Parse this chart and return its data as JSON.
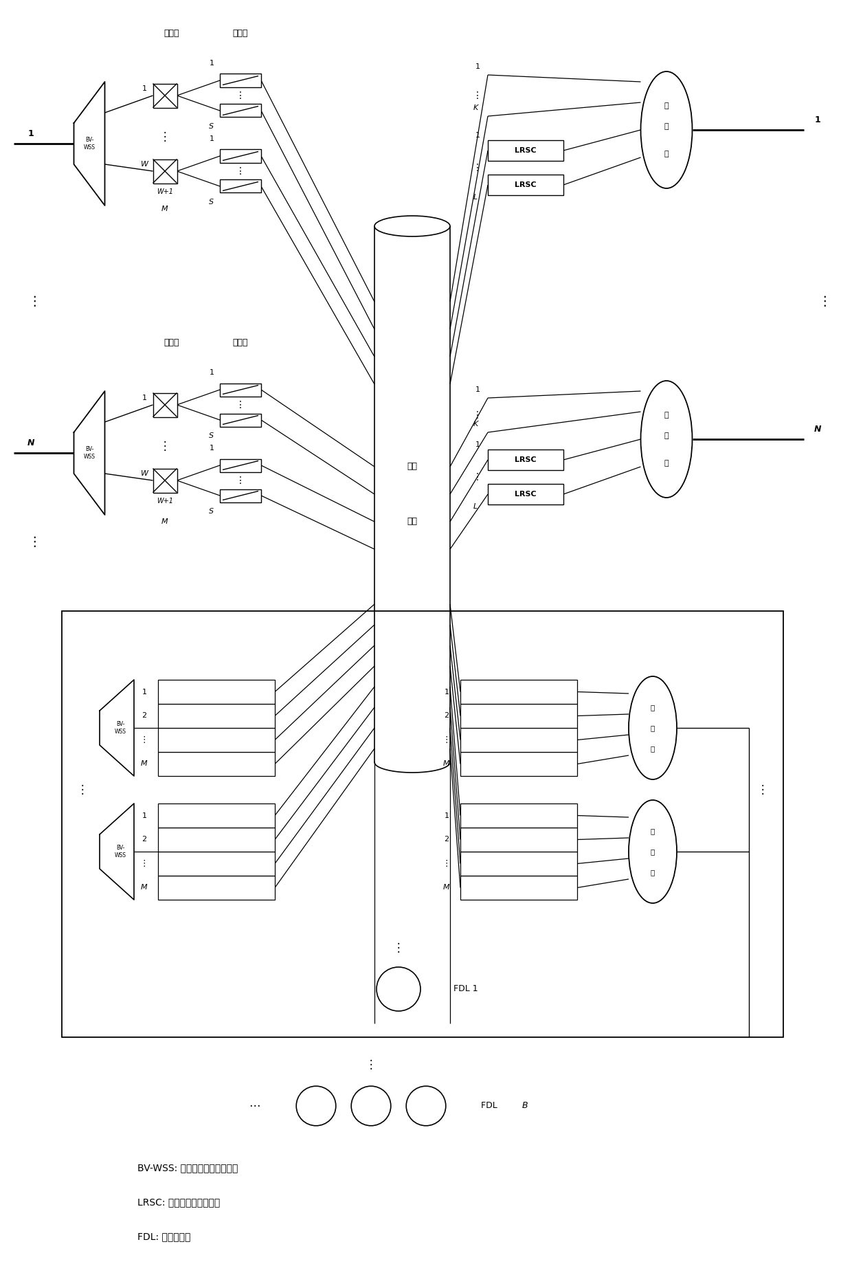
{
  "bg_color": "#ffffff",
  "line_color": "#000000",
  "fig_width": 12.4,
  "fig_height": 18.39,
  "legend_lines": [
    "BV-WSS: 带宽可变波长选择开关",
    "LRSC: 有限范围频谱转换器",
    "FDL: 光纤延迟线"
  ]
}
